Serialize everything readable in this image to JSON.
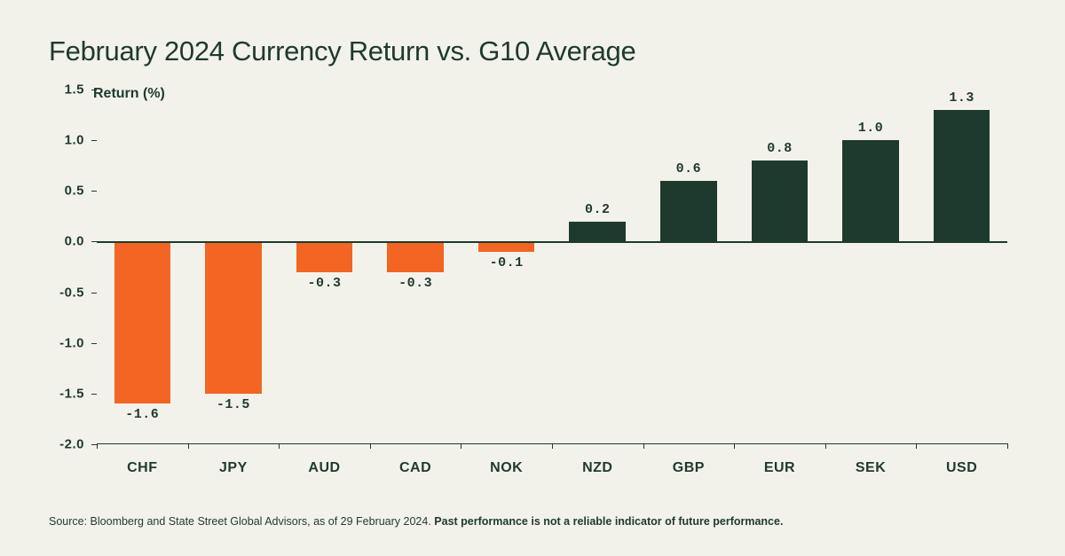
{
  "title": "February 2024 Currency Return vs. G10 Average",
  "chart": {
    "type": "bar",
    "y_axis_title": "Return (%)",
    "ylim": [
      -2.0,
      1.5
    ],
    "yticks": [
      1.5,
      1.0,
      0.5,
      0.0,
      -0.5,
      -1.0,
      -1.5,
      -2.0
    ],
    "ytick_labels": [
      "1.5",
      "1.0",
      "0.5",
      "0.0",
      "-0.5",
      "-1.0",
      "-1.5",
      "-2.0"
    ],
    "categories": [
      "CHF",
      "JPY",
      "AUD",
      "CAD",
      "NOK",
      "NZD",
      "GBP",
      "EUR",
      "SEK",
      "USD"
    ],
    "values": [
      -1.6,
      -1.5,
      -0.3,
      -0.3,
      -0.1,
      0.2,
      0.6,
      0.8,
      1.0,
      1.3
    ],
    "value_labels": [
      "-1.6",
      "-1.5",
      "-0.3",
      "-0.3",
      "-0.1",
      "0.2",
      "0.6",
      "0.8",
      "1.0",
      "1.3"
    ],
    "negative_color": "#f26522",
    "positive_color": "#1e3a2e",
    "background_color": "#f2f2ea",
    "axis_color": "#1e3a2e",
    "bar_width": 0.62,
    "title_fontsize": 31,
    "tick_fontsize": 15,
    "label_fontsize": 16
  },
  "source": {
    "prefix": "Source: Bloomberg and State Street Global Advisors, as of 29 February 2024. ",
    "bold": "Past performance is not a reliable indicator of future performance."
  }
}
